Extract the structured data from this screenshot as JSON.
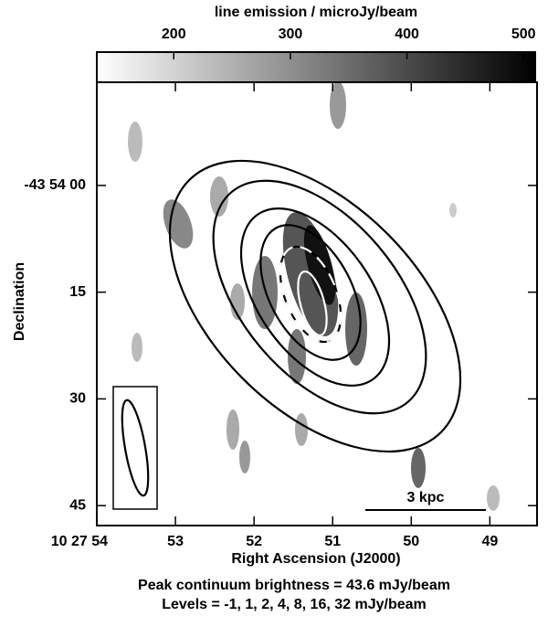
{
  "chart_data": {
    "type": "image",
    "colorbar": {
      "title": "line emission / microJy/beam",
      "lim": [
        134,
        510
      ],
      "ticks": [
        200,
        300,
        400,
        500
      ]
    },
    "xlabel": "Right Ascension (J2000)",
    "ylabel": "Declination",
    "xlim": [
      54,
      48.4
    ],
    "xticks": [
      {
        "value": 54,
        "label": "10 27 54"
      },
      53,
      52,
      51,
      50,
      49
    ],
    "ylim": [
      -14.5,
      47.8
    ],
    "yticks": [
      {
        "value": 0,
        "label": "-43 54 00"
      },
      15,
      30,
      45
    ],
    "scale_bar": "3 kpc",
    "notes": [
      "Peak continuum brightness =  43.6 mJy/beam",
      "Levels = -1, 1, 2, 4, 8, 16, 32 mJy/beam"
    ]
  }
}
